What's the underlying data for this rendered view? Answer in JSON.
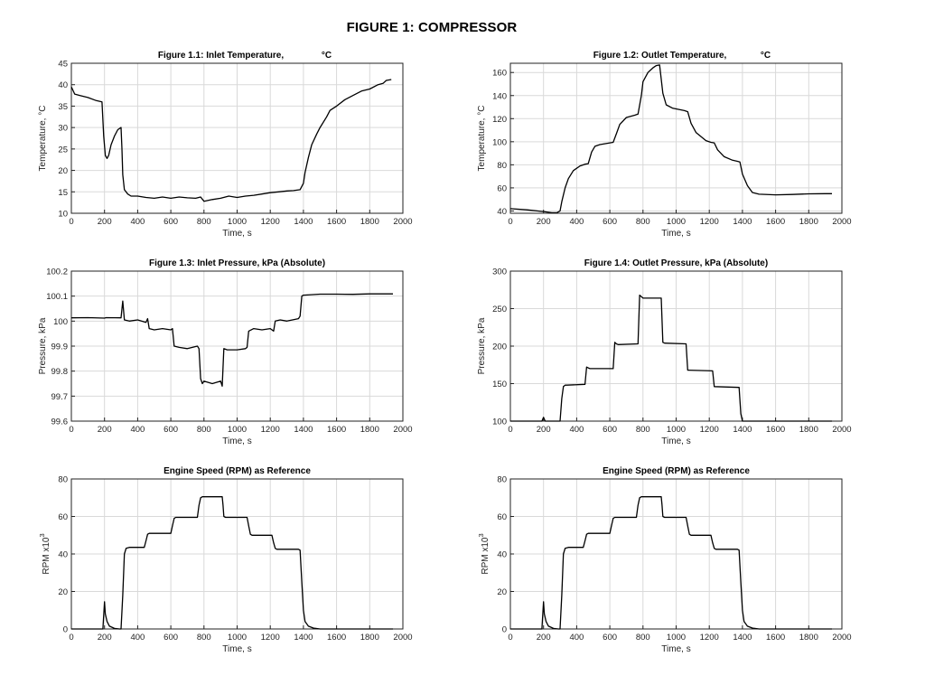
{
  "figure_title": "FIGURE 1: COMPRESSOR",
  "chart_data": [
    {
      "type": "line",
      "title": "Figure 1.1: Inlet Temperature,",
      "title_unit": "°C",
      "xlabel": "Time, s",
      "ylabel": "Temperature,  °C",
      "xlim": [
        0,
        2000
      ],
      "ylim": [
        10,
        45
      ],
      "xticks": [
        0,
        200,
        400,
        600,
        800,
        1000,
        1200,
        1400,
        1600,
        1800,
        2000
      ],
      "yticks": [
        10,
        15,
        20,
        25,
        30,
        35,
        40,
        45
      ],
      "grid": true,
      "series": [
        {
          "x": [
            0,
            20,
            50,
            100,
            150,
            185,
            195,
            205,
            215,
            225,
            240,
            260,
            280,
            300,
            305,
            310,
            320,
            340,
            360,
            400,
            450,
            500,
            550,
            600,
            650,
            700,
            750,
            780,
            800,
            850,
            900,
            950,
            1000,
            1050,
            1100,
            1150,
            1200,
            1250,
            1300,
            1340,
            1380,
            1400,
            1410,
            1430,
            1450,
            1480,
            1500,
            1540,
            1560,
            1580,
            1600,
            1650,
            1700,
            1750,
            1800,
            1850,
            1880,
            1900,
            1930
          ],
          "y": [
            39.5,
            37.8,
            37.5,
            37.0,
            36.3,
            36.0,
            28.0,
            23.5,
            22.8,
            23.5,
            26.0,
            28.0,
            29.5,
            30.0,
            25.0,
            19.0,
            15.5,
            14.5,
            14.0,
            14.0,
            13.7,
            13.5,
            13.8,
            13.5,
            13.8,
            13.6,
            13.5,
            13.8,
            12.8,
            13.2,
            13.5,
            14.0,
            13.7,
            14.0,
            14.2,
            14.5,
            14.8,
            15.0,
            15.2,
            15.3,
            15.5,
            17.0,
            19.5,
            23.0,
            26.0,
            28.5,
            30.0,
            32.5,
            34.0,
            34.5,
            35.0,
            36.5,
            37.5,
            38.5,
            39.0,
            40.0,
            40.3,
            41.0,
            41.2
          ]
        }
      ]
    },
    {
      "type": "line",
      "title": "Figure 1.2: Outlet Temperature,",
      "title_unit": "°C",
      "xlabel": "Time, s",
      "ylabel": "Temperature,  °C",
      "xlim": [
        0,
        2000
      ],
      "ylim": [
        38,
        168
      ],
      "xticks": [
        0,
        200,
        400,
        600,
        800,
        1000,
        1200,
        1400,
        1600,
        1800,
        2000
      ],
      "yticks": [
        40,
        60,
        80,
        100,
        120,
        140,
        160
      ],
      "grid": true,
      "series": [
        {
          "x": [
            0,
            100,
            200,
            250,
            280,
            300,
            310,
            330,
            350,
            380,
            420,
            450,
            470,
            490,
            510,
            540,
            600,
            620,
            640,
            660,
            700,
            750,
            770,
            790,
            800,
            830,
            860,
            880,
            900,
            920,
            940,
            980,
            1050,
            1070,
            1090,
            1120,
            1180,
            1210,
            1230,
            1250,
            1290,
            1340,
            1370,
            1385,
            1400,
            1430,
            1460,
            1500,
            1600,
            1700,
            1800,
            1900,
            1940
          ],
          "y": [
            42,
            41,
            39.5,
            38.5,
            38.5,
            40,
            48,
            60,
            68,
            75,
            79,
            80.5,
            81,
            91,
            96,
            97.5,
            99,
            99.5,
            107,
            115,
            121,
            123,
            124,
            140,
            152,
            160,
            164,
            166,
            166.5,
            142,
            132,
            129,
            127,
            126,
            116,
            108,
            101,
            99.5,
            99,
            93,
            87,
            84,
            83,
            82.5,
            72,
            62,
            56,
            54.5,
            54,
            54.3,
            54.8,
            55,
            55
          ]
        }
      ]
    },
    {
      "type": "line",
      "title": "Figure 1.3: Inlet Pressure, kPa (Absolute)",
      "xlabel": "Time, s",
      "ylabel": "Pressure, kPa",
      "xlim": [
        0,
        2000
      ],
      "ylim": [
        99.6,
        100.2
      ],
      "xticks": [
        0,
        200,
        400,
        600,
        800,
        1000,
        1200,
        1400,
        1600,
        1800,
        2000
      ],
      "yticks": [
        99.6,
        99.7,
        99.8,
        99.9,
        100,
        100.1,
        100.2
      ],
      "grid": true,
      "series": [
        {
          "x": [
            0,
            100,
            200,
            210,
            300,
            310,
            320,
            350,
            400,
            450,
            460,
            470,
            500,
            550,
            600,
            610,
            620,
            650,
            700,
            760,
            770,
            780,
            790,
            800,
            850,
            900,
            910,
            920,
            940,
            980,
            1000,
            1050,
            1060,
            1070,
            1100,
            1150,
            1200,
            1220,
            1230,
            1260,
            1300,
            1370,
            1380,
            1390,
            1400,
            1500,
            1600,
            1700,
            1800,
            1900,
            1940
          ],
          "y": [
            100.013,
            100.014,
            100.012,
            100.014,
            100.013,
            100.08,
            100.005,
            100.0,
            100.005,
            99.995,
            100.01,
            99.97,
            99.965,
            99.97,
            99.965,
            99.97,
            99.9,
            99.895,
            99.89,
            99.9,
            99.89,
            99.77,
            99.75,
            99.76,
            99.75,
            99.76,
            99.74,
            99.89,
            99.885,
            99.885,
            99.885,
            99.89,
            99.895,
            99.96,
            99.97,
            99.965,
            99.97,
            99.96,
            100.0,
            100.005,
            100.0,
            100.01,
            100.02,
            100.1,
            100.104,
            100.108,
            100.108,
            100.107,
            100.109,
            100.109,
            100.109
          ]
        }
      ]
    },
    {
      "type": "line",
      "title": "Figure 1.4: Outlet Pressure, kPa (Absolute)",
      "xlabel": "Time, s",
      "ylabel": "Pressure, kPa",
      "xlim": [
        0,
        2000
      ],
      "ylim": [
        100,
        300
      ],
      "xticks": [
        0,
        200,
        400,
        600,
        800,
        1000,
        1200,
        1400,
        1600,
        1800,
        2000
      ],
      "yticks": [
        100,
        150,
        200,
        250,
        300
      ],
      "grid": true,
      "series": [
        {
          "x": [
            0,
            190,
            200,
            210,
            300,
            310,
            320,
            330,
            340,
            450,
            460,
            470,
            480,
            620,
            630,
            640,
            650,
            770,
            780,
            790,
            800,
            910,
            920,
            930,
            1060,
            1070,
            1220,
            1230,
            1380,
            1390,
            1400,
            1500,
            1700,
            1900,
            1940
          ],
          "y": [
            100,
            100,
            105,
            100,
            100,
            130,
            146,
            148,
            148,
            149,
            172,
            171,
            170,
            170,
            205,
            203,
            202,
            203,
            268,
            266,
            264,
            264,
            205,
            204,
            203,
            168,
            167,
            146,
            145,
            110,
            100,
            100,
            100,
            100,
            100
          ]
        }
      ]
    },
    {
      "type": "line",
      "title": "Engine Speed (RPM) as Reference",
      "xlabel": "Time, s",
      "ylabel": "RPM  x10",
      "ylabel_exp": "3",
      "xlim": [
        0,
        2000
      ],
      "ylim": [
        0,
        80
      ],
      "xticks": [
        0,
        200,
        400,
        600,
        800,
        1000,
        1200,
        1400,
        1600,
        1800,
        2000
      ],
      "yticks": [
        0,
        20,
        40,
        60,
        80
      ],
      "grid": true,
      "series": [
        {
          "x": [
            0,
            190,
            200,
            205,
            215,
            230,
            260,
            290,
            300,
            310,
            320,
            330,
            350,
            440,
            450,
            460,
            470,
            480,
            600,
            610,
            620,
            630,
            640,
            760,
            770,
            780,
            790,
            800,
            910,
            915,
            920,
            930,
            1060,
            1070,
            1080,
            1090,
            1210,
            1220,
            1230,
            1240,
            1370,
            1380,
            1390,
            1400,
            1410,
            1430,
            1460,
            1500,
            1600,
            1900,
            1940
          ],
          "y": [
            0,
            0,
            14.5,
            8,
            4,
            1.5,
            0.3,
            0,
            0,
            18,
            40,
            43,
            43.5,
            43.5,
            47,
            50.5,
            51,
            51,
            51,
            55,
            59,
            59.5,
            59.5,
            59.5,
            66,
            70,
            70.5,
            70.5,
            70.5,
            66,
            60,
            59.5,
            59.5,
            55,
            50.5,
            50,
            50,
            46,
            43,
            42.5,
            42.5,
            42,
            25,
            10,
            4,
            1.5,
            0.5,
            0,
            0,
            0,
            0
          ]
        }
      ]
    },
    {
      "type": "line",
      "title": "Engine Speed (RPM) as Reference",
      "xlabel": "Time, s",
      "ylabel": "RPM  x10",
      "ylabel_exp": "3",
      "xlim": [
        0,
        2000
      ],
      "ylim": [
        0,
        80
      ],
      "xticks": [
        0,
        200,
        400,
        600,
        800,
        1000,
        1200,
        1400,
        1600,
        1800,
        2000
      ],
      "yticks": [
        0,
        20,
        40,
        60,
        80
      ],
      "grid": true,
      "series": [
        {
          "x": [
            0,
            190,
            200,
            205,
            215,
            230,
            260,
            290,
            300,
            310,
            320,
            330,
            350,
            440,
            450,
            460,
            470,
            480,
            600,
            610,
            620,
            630,
            640,
            760,
            770,
            780,
            790,
            800,
            910,
            915,
            920,
            930,
            1060,
            1070,
            1080,
            1090,
            1210,
            1220,
            1230,
            1240,
            1370,
            1380,
            1390,
            1400,
            1410,
            1430,
            1460,
            1500,
            1600,
            1900,
            1940
          ],
          "y": [
            0,
            0,
            14.5,
            8,
            4,
            1.5,
            0.3,
            0,
            0,
            18,
            40,
            43,
            43.5,
            43.5,
            47,
            50.5,
            51,
            51,
            51,
            55,
            59,
            59.5,
            59.5,
            59.5,
            66,
            70,
            70.5,
            70.5,
            70.5,
            66,
            60,
            59.5,
            59.5,
            55,
            50.5,
            50,
            50,
            46,
            43,
            42.5,
            42.5,
            42,
            25,
            10,
            4,
            1.5,
            0.5,
            0,
            0,
            0,
            0
          ]
        }
      ]
    }
  ]
}
